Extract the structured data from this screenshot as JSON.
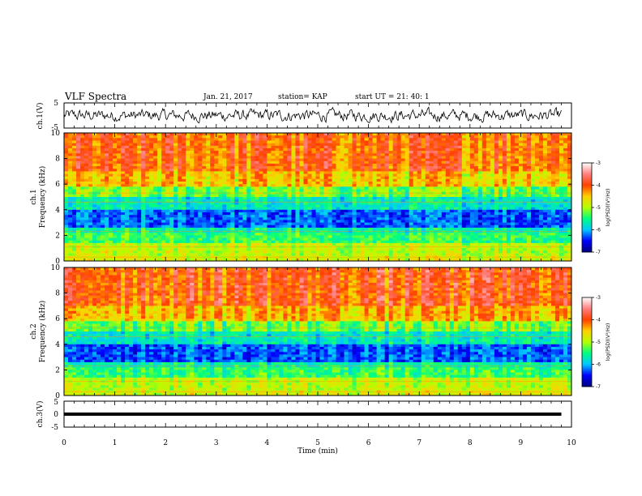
{
  "header": {
    "title": "VLF Spectra",
    "date": "Jan. 21, 2017",
    "station": "station= KAP",
    "start_ut": "start  UT =   21: 40: 1"
  },
  "colors": {
    "waveform": "#000000",
    "colormap": [
      "#000080",
      "#0000ff",
      "#00c8ff",
      "#00ff80",
      "#b4ff00",
      "#ffd000",
      "#ff4000",
      "#ff8080",
      "#ffffff"
    ]
  },
  "chart_data": [
    {
      "type": "line",
      "name": "ch1-waveform",
      "ylabel": "ch.1(V)",
      "ylim": [
        -5,
        5
      ],
      "yticks": [
        "5",
        "-5"
      ],
      "xlim": [
        0,
        10
      ],
      "x_range_data": [
        0,
        9.8
      ],
      "mean": 0,
      "amplitude": 2.2
    },
    {
      "type": "heatmap",
      "name": "ch1-spectrogram",
      "ylabel": "ch.1\nFrequency (kHz)",
      "ylim": [
        0,
        10
      ],
      "yticks": [
        "0",
        "2",
        "4",
        "6",
        "8",
        "10"
      ],
      "xlim": [
        0,
        10
      ],
      "colorbar": {
        "label": "log(PSD)(V²/Hz)",
        "range": [
          -7,
          -3
        ],
        "ticks": [
          "-3",
          "-4",
          "-5",
          "-6",
          "-7"
        ]
      }
    },
    {
      "type": "heatmap",
      "name": "ch2-spectrogram",
      "ylabel": "ch.2\nFrequency (kHz)",
      "ylim": [
        0,
        10
      ],
      "yticks": [
        "0",
        "2",
        "4",
        "6",
        "8",
        "10"
      ],
      "xlim": [
        0,
        10
      ],
      "colorbar": {
        "label": "log(PSD)(V²/Hz)",
        "range": [
          -7,
          -3
        ],
        "ticks": [
          "-3",
          "-4",
          "-5",
          "-6",
          "-7"
        ]
      }
    },
    {
      "type": "line",
      "name": "ch3-waveform",
      "ylabel": "ch.3(V)",
      "ylim": [
        -5,
        5
      ],
      "yticks": [
        "5",
        "0",
        "-5"
      ],
      "xlim": [
        0,
        10
      ],
      "x_range_data": [
        0,
        9.8
      ],
      "constant_value": 0
    }
  ],
  "x_axis": {
    "label": "Time (min)",
    "ticks": [
      "0",
      "1",
      "2",
      "3",
      "4",
      "5",
      "6",
      "7",
      "8",
      "9",
      "10"
    ]
  },
  "ch1_label": "ch.1",
  "ch2_label": "ch.2",
  "freq_label": "Frequency (kHz)"
}
